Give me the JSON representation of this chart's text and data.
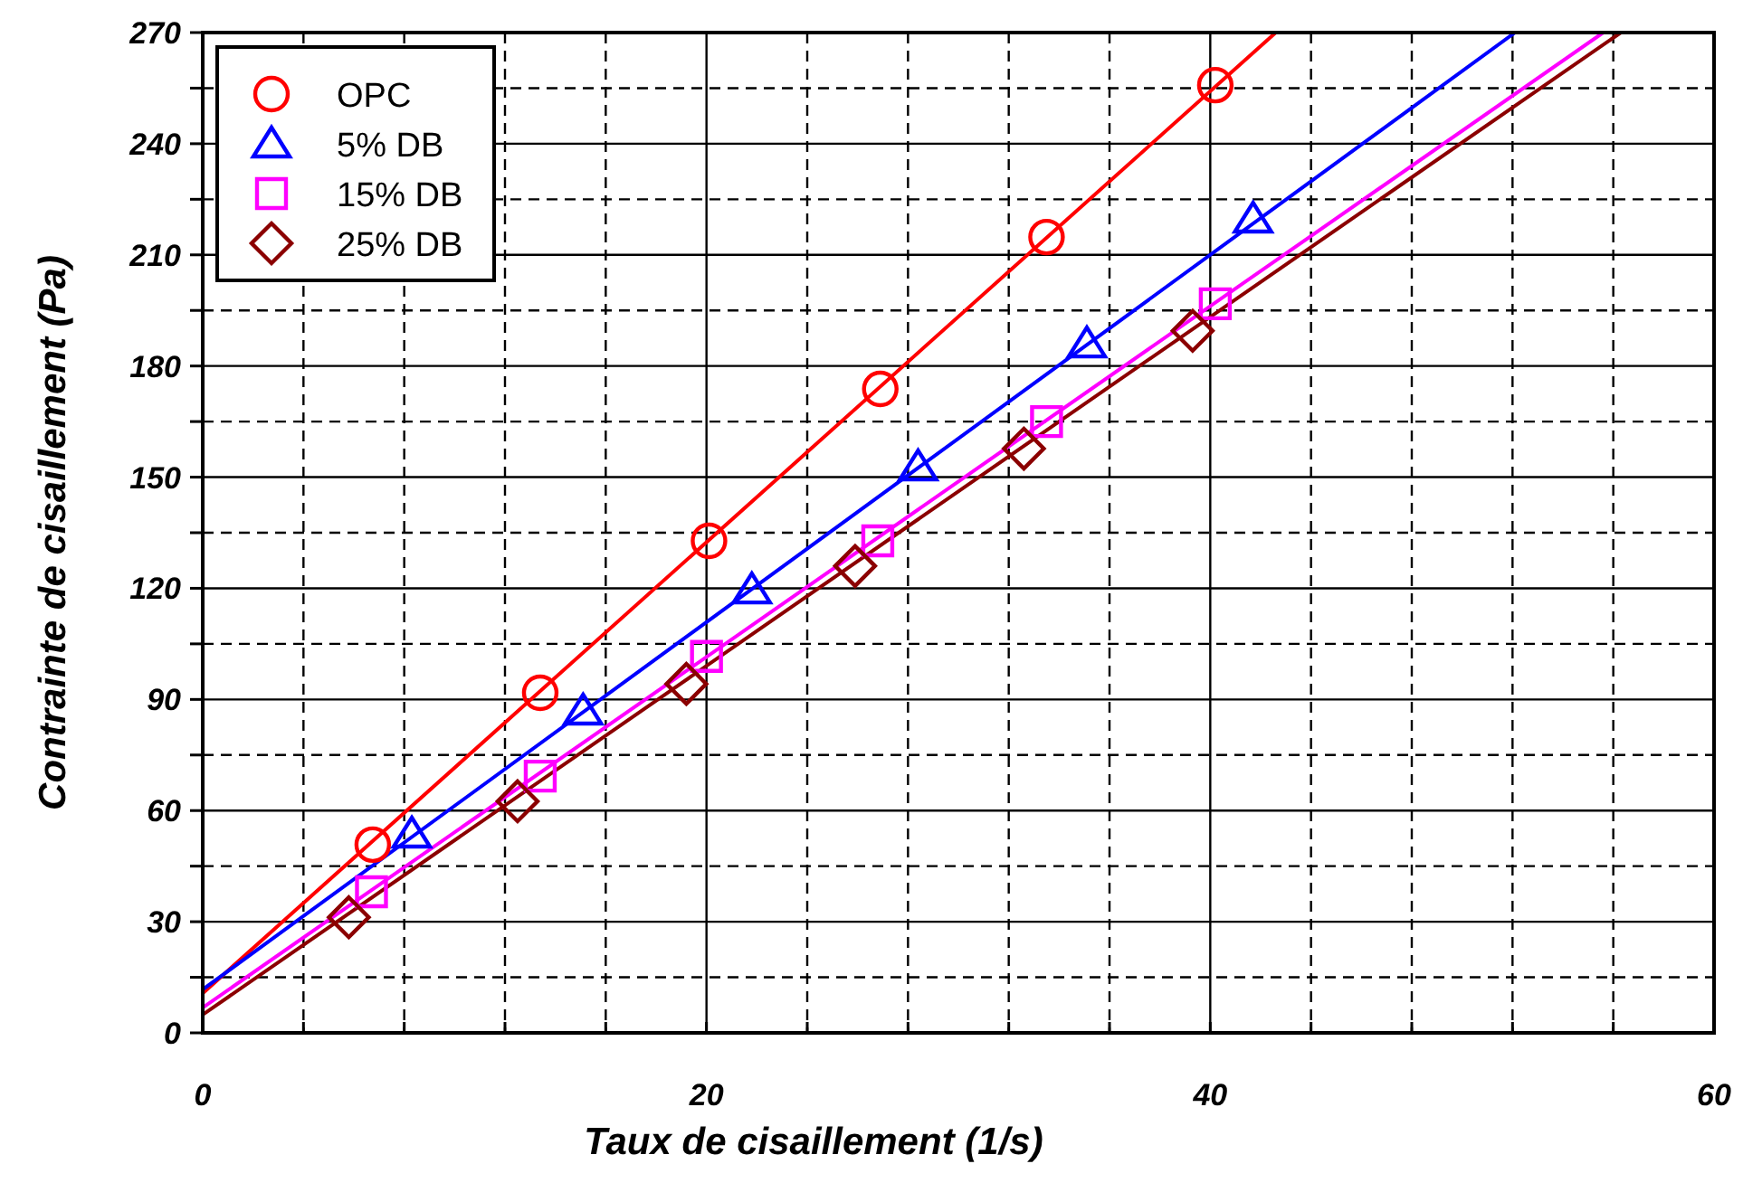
{
  "chart_data": {
    "type": "scatter",
    "xlabel": "Taux de cisaillement (1/s)",
    "ylabel": "Contrainte de cisaillement (Pa)",
    "xlim": [
      0,
      60
    ],
    "ylim": [
      0,
      270
    ],
    "xticks": [
      0,
      {
        "value": 4,
        "label": null
      },
      {
        "value": 8,
        "label": null
      },
      {
        "value": 12,
        "label": null
      },
      {
        "value": 16,
        "label": null
      },
      20,
      {
        "value": 24,
        "label": null
      },
      {
        "value": 28,
        "label": null
      },
      {
        "value": 32,
        "label": null
      },
      {
        "value": 36,
        "label": null
      },
      40,
      {
        "value": 44,
        "label": null
      },
      {
        "value": 48,
        "label": null
      },
      {
        "value": 52,
        "label": null
      },
      {
        "value": 56,
        "label": null
      },
      60
    ],
    "yticks": [
      0,
      {
        "value": 15,
        "label": null
      },
      30,
      {
        "value": 45,
        "label": null
      },
      60,
      {
        "value": 75,
        "label": null
      },
      90,
      {
        "value": 105,
        "label": null
      },
      120,
      {
        "value": 135,
        "label": null
      },
      150,
      {
        "value": 165,
        "label": null
      },
      180,
      {
        "value": 195,
        "label": null
      },
      210,
      {
        "value": 225,
        "label": null
      },
      240,
      {
        "value": 255,
        "label": null
      },
      270
    ],
    "grid": true,
    "legend": "top left",
    "line_style": "solid",
    "series": [
      {
        "name": "OPC",
        "marker": "circle",
        "color": "#ff0000",
        "x": [
          6.75,
          13.4,
          20.1,
          26.9,
          33.5,
          40.2
        ],
        "values": [
          50.8,
          91.8,
          132.8,
          173.8,
          214.8,
          255.8
        ]
      },
      {
        "name": "5% DB",
        "marker": "triangle",
        "color": "#0000ff",
        "x": [
          8.3,
          15.1,
          21.8,
          28.4,
          35.1,
          41.7
        ],
        "values": [
          53.7,
          86.9,
          119.6,
          152.8,
          186,
          219.7
        ]
      },
      {
        "name": "15% DB",
        "marker": "square",
        "color": "#ff00ff",
        "x": [
          6.7,
          13.4,
          20.0,
          26.8,
          33.5,
          40.2
        ],
        "values": [
          38.1,
          69.3,
          101.6,
          132.8,
          165,
          196.8
        ]
      },
      {
        "name": "25% DB",
        "marker": "diamond",
        "color": "#8b0000",
        "x": [
          5.8,
          12.5,
          19.2,
          25.9,
          32.6,
          39.3
        ],
        "values": [
          31.2,
          62.5,
          94.2,
          126,
          157.7,
          189.5
        ]
      },
      {
        "type": "line",
        "color": "#ff0000",
        "x": [
          0,
          42.6
        ],
        "values": [
          10.7,
          270
        ]
      },
      {
        "type": "line",
        "color": "#0000ff",
        "x": [
          0,
          52.1
        ],
        "values": [
          11.7,
          270
        ]
      },
      {
        "type": "line",
        "color": "#ff00ff",
        "x": [
          0,
          55.6
        ],
        "values": [
          6.8,
          270
        ]
      },
      {
        "type": "line",
        "color": "#8b0000",
        "x": [
          0,
          56.3
        ],
        "values": [
          4.9,
          270
        ]
      }
    ]
  }
}
